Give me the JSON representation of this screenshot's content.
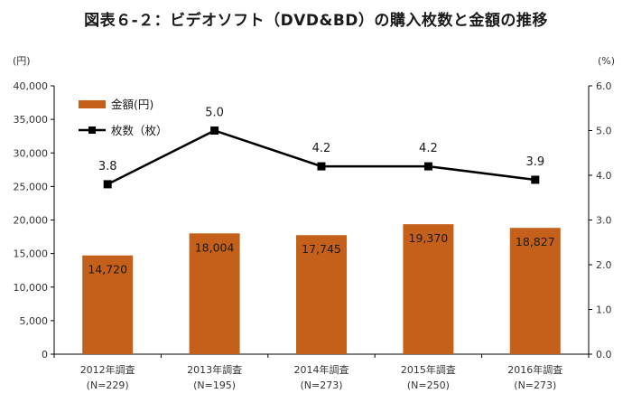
{
  "title": "図表６-２：ビデオソフト（DVD&BD）の購入枚数と金額の推移",
  "axes": {
    "left_unit": "(円)",
    "right_unit": "(%)",
    "left_ticks": [
      "0",
      "5,000",
      "10,000",
      "15,000",
      "20,000",
      "25,000",
      "30,000",
      "35,000",
      "40,000"
    ],
    "right_ticks": [
      "0.0",
      "1.0",
      "2.0",
      "3.0",
      "4.0",
      "5.0",
      "6.0"
    ]
  },
  "legend": {
    "bar_label": "金額(円)",
    "line_label": "枚数（枚）"
  },
  "chart_data": {
    "type": "bar",
    "title": "図表６-２：ビデオソフト（DVD&BD）の購入枚数と金額の推移",
    "categories": [
      "2012年調査",
      "2013年調査",
      "2014年調査",
      "2015年調査",
      "2016年調査"
    ],
    "category_sublabels": [
      "(N=229)",
      "(N=195)",
      "(N=273)",
      "(N=250)",
      "(N=273)"
    ],
    "series": [
      {
        "name": "金額(円)",
        "type": "bar",
        "axis": "left",
        "color": "#C5601A",
        "values": [
          14720,
          18004,
          17745,
          19370,
          18827
        ],
        "labels": [
          "14,720",
          "18,004",
          "17,745",
          "19,370",
          "18,827"
        ]
      },
      {
        "name": "枚数（枚）",
        "type": "line",
        "axis": "right",
        "color": "#000000",
        "values": [
          3.8,
          5.0,
          4.2,
          4.2,
          3.9
        ],
        "labels": [
          "3.8",
          "5.0",
          "4.2",
          "4.2",
          "3.9"
        ]
      }
    ],
    "ylim_left": [
      0,
      40000
    ],
    "ylim_right": [
      0,
      6
    ],
    "left_axis_unit": "(円)",
    "right_axis_unit": "(%)",
    "grid": false,
    "legend_position": "top-left"
  }
}
